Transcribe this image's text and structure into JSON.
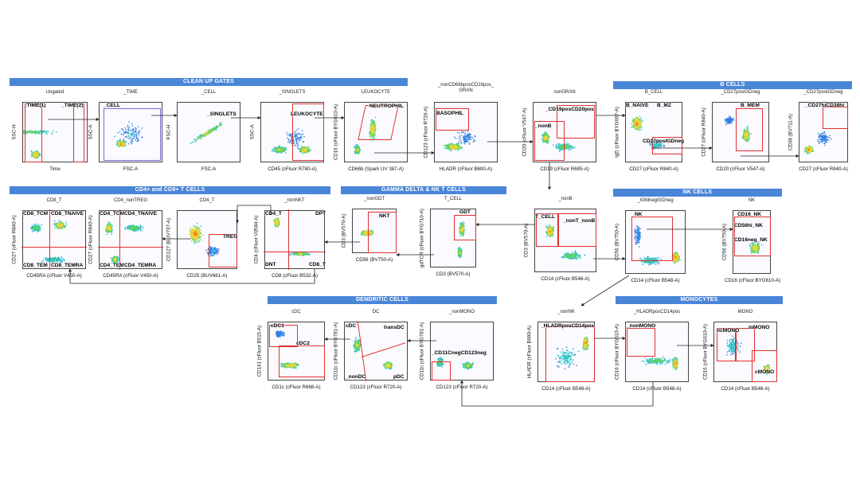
{
  "colors": {
    "banner": "#4a86d8",
    "gate": "#e03030",
    "arrow": "#222222"
  },
  "sections": {
    "cleanup": "CLEAN UP GATES",
    "bcells": "B CELLS",
    "tcells": "CD4+ and CD8+ T CELLS",
    "gammadelta": "GAMMA DELTA & NK T CELLS",
    "nk": "NK CELLS",
    "dc": "DENDRITIC CELLS",
    "mono": "MONOCYTES"
  },
  "plots": {
    "ungated": {
      "title": "Ungated",
      "x": "Time",
      "y": "SSC-H",
      "gates": [
        "_TIME(1)",
        "_TIME(2)"
      ]
    },
    "time": {
      "title": "_TIME",
      "x": "FSC-A",
      "y": "SSC-A",
      "gates": [
        "_CELL"
      ]
    },
    "cell": {
      "title": "_CELL",
      "x": "FSC-A",
      "y": "FSC-H",
      "gates": [
        "_SINGLETS"
      ]
    },
    "singlets": {
      "title": "_SINGLETS",
      "x": "CD45 (cFluor R780-A)",
      "y": "SSC-A",
      "gates": [
        "LEUKOCYTE"
      ]
    },
    "leukocyte": {
      "title": "LEUKOCYTE",
      "x": "CD66b (Spark UV 387-A)",
      "y": "CD16 (cFluor BYG610-A)",
      "gates": [
        "NEUTROPHIL"
      ]
    },
    "gran": {
      "title": "_nonCD66bposCD16pos_\nGRAN",
      "x": "HLADR (cFluor B690-A)",
      "y": "CD123 (cFluor R720-A)",
      "gates": [
        "BASOPHIL"
      ]
    },
    "nongran": {
      "title": "nonGRAN",
      "x": "CD19 (cFluor R685-A)",
      "y": "CD20 (cFluor V547-A)",
      "gates": [
        "_CD19posCD20pos",
        "_nonB"
      ]
    },
    "bcell": {
      "title": "B_CELL",
      "x": "CD27 (cFluor R840-A)",
      "y": "IgD (cFluor BYG667-A)",
      "gates": [
        "B_NAIVE",
        "B_MZ",
        "CD27posIGDneg"
      ]
    },
    "cd27posigdneg": {
      "title": "_CD27posIGDneg",
      "x": "CD20 (cFluor V547-A)",
      "y": "CD27 (cFluor R840-A)",
      "gates": [
        "B_MEM"
      ]
    },
    "cd27posigdneg2": {
      "title": "_CD27posIGDneg",
      "x": "CD27 (cFluor R840-A)",
      "y": "CD38 (BV711-A)",
      "gates": [
        "_CD27hiCD38hi"
      ]
    },
    "cd8t": {
      "title": "CD8_T",
      "x": "CD45RA (cFluor V450-A)",
      "y": "CD27 (cFluor R840-A)",
      "gates": [
        "CD8_TCM",
        "CD8_TNAIVE",
        "CD8_TEM",
        "CD8_TEMRA"
      ]
    },
    "cd4nontreg": {
      "title": "CD4_nonTREG",
      "x": "CD45RA (cFluor V450-A)",
      "y": "CD27 (cFluor R840-A)",
      "gates": [
        "CD4_TCM",
        "CD4_TNAIVE",
        "CD4_TEM",
        "CD4_TEMRA"
      ]
    },
    "cd4t": {
      "title": "CD4_T",
      "x": "CD25 (BUV661-A)",
      "y": "CD127 (BUV737-A)",
      "gates": [
        "TREG"
      ]
    },
    "nonnkt": {
      "title": "_nonNKT",
      "x": "CD8 (cFluor B532-A)",
      "y": "CD4 (cFluor V0584-A)",
      "gates": [
        "CD4_T",
        "DPT",
        "DNT",
        "CD8_T"
      ]
    },
    "nongdt": {
      "title": "_nonGDT",
      "x": "CD56 (BV750-A)",
      "y": "CD3 (BV570-A)",
      "gates": [
        "NKT"
      ]
    },
    "tcell": {
      "title": "T_CELL",
      "x": "CD3 (BV570-A)",
      "y": "gdTCR (cFluor BYG710-A)",
      "gates": [
        "GDT"
      ]
    },
    "nonb": {
      "title": "_nonB",
      "x": "CD14 (cFluor B548-A)",
      "y": "CD3 (BV570-A)",
      "gates": [
        "T_CELL",
        "_nonT_nonB"
      ]
    },
    "igmneg": {
      "title": "_IGMnegIGDneg",
      "x": "CD14 (cFluor B548-A)",
      "y": "CD56 (BV750-A)",
      "gates": [
        "NK"
      ]
    },
    "nk": {
      "title": "NK",
      "x": "CD16 (cFluor BYG610-A)",
      "y": "CD56 (BV750-A)",
      "gates": [
        "CD16_NK",
        "CD56hi_NK",
        "CD16neg_NK"
      ]
    },
    "cdc": {
      "title": "cDC",
      "x": "CD1c (cFluor R668-A)",
      "y": "CD141 (cFluor B515-A)",
      "gates": [
        "cDC1",
        "cDC2"
      ]
    },
    "dc": {
      "title": "DC",
      "x": "CD123 (cFluor R720-A)",
      "y": "CD11c (cFluor BYG781-A)",
      "gates": [
        "cDC",
        "transDC",
        "_nonDC",
        "pDC"
      ]
    },
    "nonmono": {
      "title": "_nonMONO",
      "x": "CD123 (cFluor R720-A)",
      "y": "CD11c (cFluor BYG781-A)",
      "gates": [
        "_CD11CnegCD123neg"
      ]
    },
    "nonnk": {
      "title": "_nonNK",
      "x": "CD14 (cFluor B548-A)",
      "y": "HLADR (cFluor B690-A)",
      "gates": [
        "_HLADRposCD14pos"
      ]
    },
    "hladrpos": {
      "title": "_HLADRposCD14pos",
      "x": "CD14 (cFluor B548-A)",
      "y": "CD16 (cFluor BYG610-A)",
      "gates": [
        "_nonMONO"
      ]
    },
    "mono": {
      "title": "MONO",
      "x": "CD14 (cFluor B548-A)",
      "y": "CD16 (cFluor BYG610-A)",
      "gates": [
        "ncMONO",
        "inMONO",
        "cMONO"
      ]
    }
  }
}
